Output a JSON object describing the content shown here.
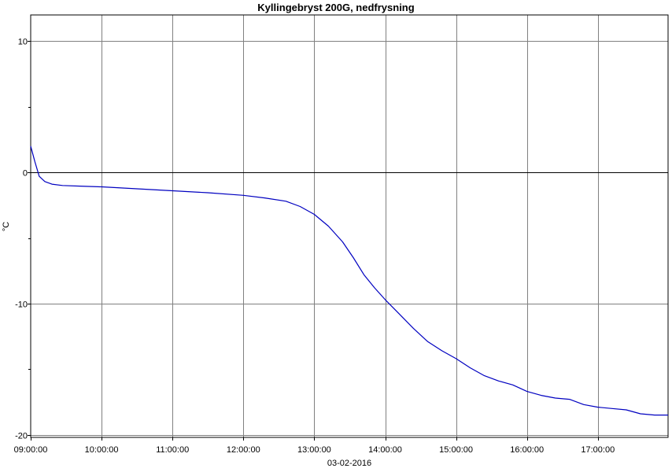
{
  "chart_data": {
    "type": "line",
    "title": "Kyllingebryst 200G, nedfrysning",
    "ylabel": "°C",
    "xlabel": "03-02-2016",
    "xlim_hours": [
      9.0,
      17.99
    ],
    "ylim": [
      -20.2,
      12
    ],
    "yticks": [
      {
        "value": 10,
        "label": "10"
      },
      {
        "value": 0,
        "label": "0"
      },
      {
        "value": -10,
        "label": "-10"
      },
      {
        "value": -20,
        "label": "-20"
      }
    ],
    "yminor": [
      5,
      -5,
      -15
    ],
    "xticks": [
      {
        "value": 9,
        "label": "09:00:00"
      },
      {
        "value": 10,
        "label": "10:00:00"
      },
      {
        "value": 11,
        "label": "11:00:00"
      },
      {
        "value": 12,
        "label": "12:00:00"
      },
      {
        "value": 13,
        "label": "13:00:00"
      },
      {
        "value": 14,
        "label": "14:00:00"
      },
      {
        "value": 15,
        "label": "15:00:00"
      },
      {
        "value": 16,
        "label": "16:00:00"
      },
      {
        "value": 17,
        "label": "17:00:00"
      }
    ],
    "grid": true,
    "series": [
      {
        "color": "#0000c0",
        "x": [
          9.0,
          9.06,
          9.12,
          9.2,
          9.3,
          9.45,
          9.7,
          10.0,
          10.5,
          11.0,
          11.5,
          12.0,
          12.3,
          12.6,
          12.8,
          13.0,
          13.2,
          13.4,
          13.55,
          13.7,
          13.85,
          14.0,
          14.2,
          14.4,
          14.6,
          14.8,
          15.0,
          15.2,
          15.4,
          15.6,
          15.8,
          16.0,
          16.2,
          16.4,
          16.6,
          16.8,
          17.0,
          17.2,
          17.4,
          17.6,
          17.8,
          17.99
        ],
        "y": [
          2.0,
          0.8,
          -0.3,
          -0.7,
          -0.9,
          -1.0,
          -1.05,
          -1.1,
          -1.25,
          -1.4,
          -1.55,
          -1.75,
          -1.95,
          -2.2,
          -2.6,
          -3.2,
          -4.1,
          -5.3,
          -6.5,
          -7.8,
          -8.8,
          -9.7,
          -10.8,
          -11.9,
          -12.9,
          -13.6,
          -14.2,
          -14.9,
          -15.5,
          -15.9,
          -16.2,
          -16.7,
          -17.0,
          -17.2,
          -17.3,
          -17.7,
          -17.9,
          -18.0,
          -18.1,
          -18.4,
          -18.5,
          -18.5
        ]
      }
    ]
  }
}
